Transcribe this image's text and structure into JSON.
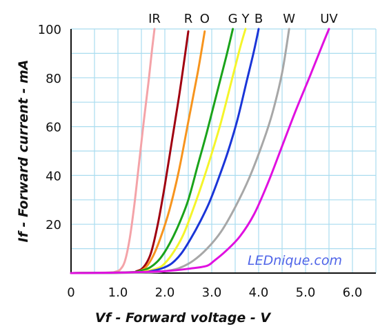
{
  "chart_data": {
    "type": "line",
    "xlabel": "Vf - Forward voltage - V",
    "ylabel": "If - Forward current - mA",
    "xlim": [
      0,
      6.5
    ],
    "ylim": [
      0,
      100
    ],
    "x_ticks": [
      "0",
      "1.0",
      "2.0",
      "3.0",
      "4.0",
      "5.0",
      "6.0"
    ],
    "y_ticks": [
      "20",
      "40",
      "60",
      "80",
      "100"
    ],
    "grid": true,
    "watermark": "LEDnique.com",
    "series": [
      {
        "name": "IR",
        "color": "#f4a3a8",
        "points": [
          [
            0,
            0
          ],
          [
            0.8,
            0.2
          ],
          [
            0.95,
            0.6
          ],
          [
            1.05,
            1.5
          ],
          [
            1.15,
            5
          ],
          [
            1.25,
            14
          ],
          [
            1.35,
            28
          ],
          [
            1.45,
            45
          ],
          [
            1.55,
            62
          ],
          [
            1.65,
            78
          ],
          [
            1.73,
            92
          ],
          [
            1.78,
            100
          ]
        ]
      },
      {
        "name": "R",
        "color": "#a00010",
        "points": [
          [
            0,
            0
          ],
          [
            1.2,
            0.2
          ],
          [
            1.4,
            0.8
          ],
          [
            1.55,
            2.5
          ],
          [
            1.7,
            8
          ],
          [
            1.85,
            20
          ],
          [
            2.0,
            36
          ],
          [
            2.15,
            54
          ],
          [
            2.3,
            72
          ],
          [
            2.42,
            88
          ],
          [
            2.5,
            99
          ]
        ]
      },
      {
        "name": "O",
        "color": "#f7941d",
        "points": [
          [
            0,
            0
          ],
          [
            1.2,
            0.2
          ],
          [
            1.45,
            0.8
          ],
          [
            1.6,
            2.5
          ],
          [
            1.75,
            7
          ],
          [
            1.9,
            14
          ],
          [
            2.1,
            26
          ],
          [
            2.3,
            42
          ],
          [
            2.5,
            62
          ],
          [
            2.7,
            82
          ],
          [
            2.85,
            99
          ]
        ]
      },
      {
        "name": "G",
        "color": "#1aa31a",
        "points": [
          [
            0,
            0
          ],
          [
            1.2,
            0.3
          ],
          [
            1.5,
            1
          ],
          [
            1.7,
            2.5
          ],
          [
            1.9,
            6
          ],
          [
            2.1,
            12
          ],
          [
            2.3,
            20
          ],
          [
            2.5,
            30
          ],
          [
            2.7,
            44
          ],
          [
            2.9,
            58
          ],
          [
            3.1,
            73
          ],
          [
            3.3,
            88
          ],
          [
            3.45,
            100
          ]
        ]
      },
      {
        "name": "Y",
        "color": "#f5f52a",
        "points": [
          [
            0,
            0
          ],
          [
            1.3,
            0.2
          ],
          [
            1.6,
            0.8
          ],
          [
            1.85,
            2
          ],
          [
            2.0,
            4
          ],
          [
            2.2,
            9
          ],
          [
            2.4,
            16
          ],
          [
            2.6,
            26
          ],
          [
            2.8,
            37
          ],
          [
            3.0,
            49
          ],
          [
            3.2,
            62
          ],
          [
            3.4,
            77
          ],
          [
            3.6,
            92
          ],
          [
            3.72,
            100
          ]
        ]
      },
      {
        "name": "B",
        "color": "#1a35d8",
        "points": [
          [
            0,
            0
          ],
          [
            1.4,
            0.2
          ],
          [
            1.7,
            0.8
          ],
          [
            1.95,
            2
          ],
          [
            2.15,
            4
          ],
          [
            2.35,
            8
          ],
          [
            2.55,
            14
          ],
          [
            2.75,
            21
          ],
          [
            2.95,
            29
          ],
          [
            3.15,
            39
          ],
          [
            3.35,
            50
          ],
          [
            3.55,
            63
          ],
          [
            3.75,
            79
          ],
          [
            3.9,
            91
          ],
          [
            4.0,
            100
          ]
        ]
      },
      {
        "name": "W",
        "color": "#a7a7a7",
        "points": [
          [
            0,
            0
          ],
          [
            1.6,
            0.2
          ],
          [
            2.0,
            0.8
          ],
          [
            2.3,
            2
          ],
          [
            2.6,
            5
          ],
          [
            2.9,
            10
          ],
          [
            3.2,
            17
          ],
          [
            3.5,
            27
          ],
          [
            3.8,
            39
          ],
          [
            4.1,
            54
          ],
          [
            4.3,
            66
          ],
          [
            4.5,
            82
          ],
          [
            4.65,
            100
          ]
        ]
      },
      {
        "name": "UV",
        "color": "#e010e0",
        "points": [
          [
            0,
            0
          ],
          [
            1.0,
            0.2
          ],
          [
            2.0,
            0.8
          ],
          [
            2.6,
            2
          ],
          [
            2.9,
            3
          ],
          [
            3.05,
            5
          ],
          [
            3.3,
            9
          ],
          [
            3.6,
            15
          ],
          [
            3.9,
            24
          ],
          [
            4.2,
            37
          ],
          [
            4.5,
            52
          ],
          [
            4.8,
            67
          ],
          [
            5.1,
            81
          ],
          [
            5.35,
            93
          ],
          [
            5.5,
            100
          ]
        ]
      }
    ]
  }
}
